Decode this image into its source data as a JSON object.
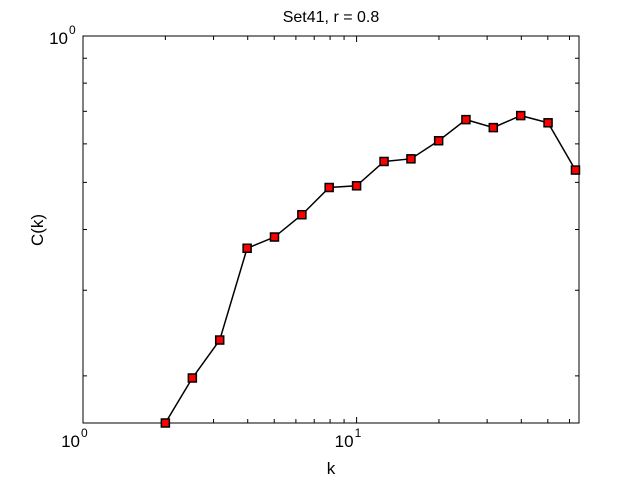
{
  "chart_data": {
    "type": "line",
    "title": "Set41, r = 0.8",
    "xlabel": "k",
    "ylabel": "C(k)",
    "xscale": "log",
    "yscale": "log",
    "xlim": [
      1,
      65
    ],
    "ylim": [
      0.16,
      1
    ],
    "x_tick_labels": [
      {
        "base": "10",
        "exp": "0",
        "value": 1
      },
      {
        "base": "10",
        "exp": "1",
        "value": 10
      }
    ],
    "y_tick_labels": [
      {
        "base": "10",
        "exp": "0",
        "value": 1
      }
    ],
    "grid": false,
    "marker": "square",
    "marker_color": "#ff0000",
    "line_color": "#000000",
    "series": [
      {
        "x": [
          2,
          2.51,
          3.16,
          3.98,
          5.01,
          6.31,
          7.94,
          10,
          12.6,
          15.8,
          19.95,
          25.1,
          31.6,
          39.8,
          50.1,
          63.1
        ],
        "y": [
          0.16,
          0.198,
          0.237,
          0.366,
          0.386,
          0.429,
          0.488,
          0.492,
          0.552,
          0.559,
          0.609,
          0.673,
          0.648,
          0.686,
          0.663,
          0.53
        ]
      }
    ]
  }
}
